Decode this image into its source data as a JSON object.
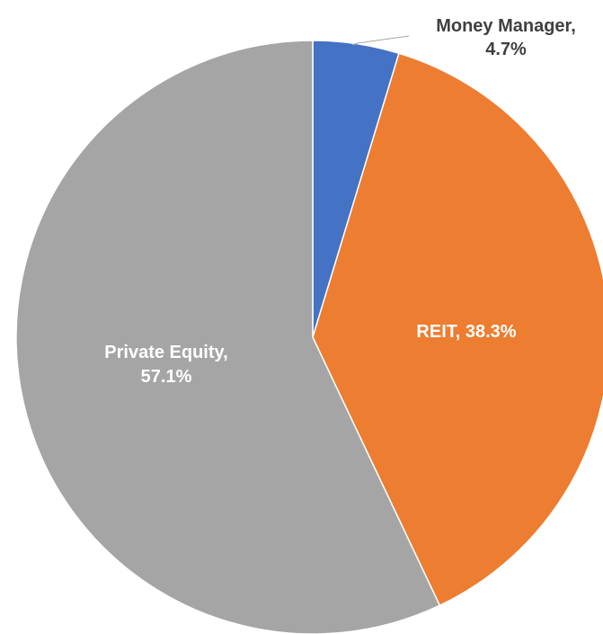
{
  "chart_data": {
    "type": "pie",
    "values": [
      4.7,
      38.3,
      57.1
    ],
    "value_labels": [
      [
        "Money Manager,",
        "4.7%"
      ],
      [
        "REIT, 38.3%"
      ],
      [
        "Private Equity,",
        "57.1%"
      ]
    ],
    "colors": [
      "#4472c4",
      "#ed7d31",
      "#a5a5a5"
    ],
    "label_colors": [
      "#404040",
      "#ffffff",
      "#ffffff"
    ]
  }
}
